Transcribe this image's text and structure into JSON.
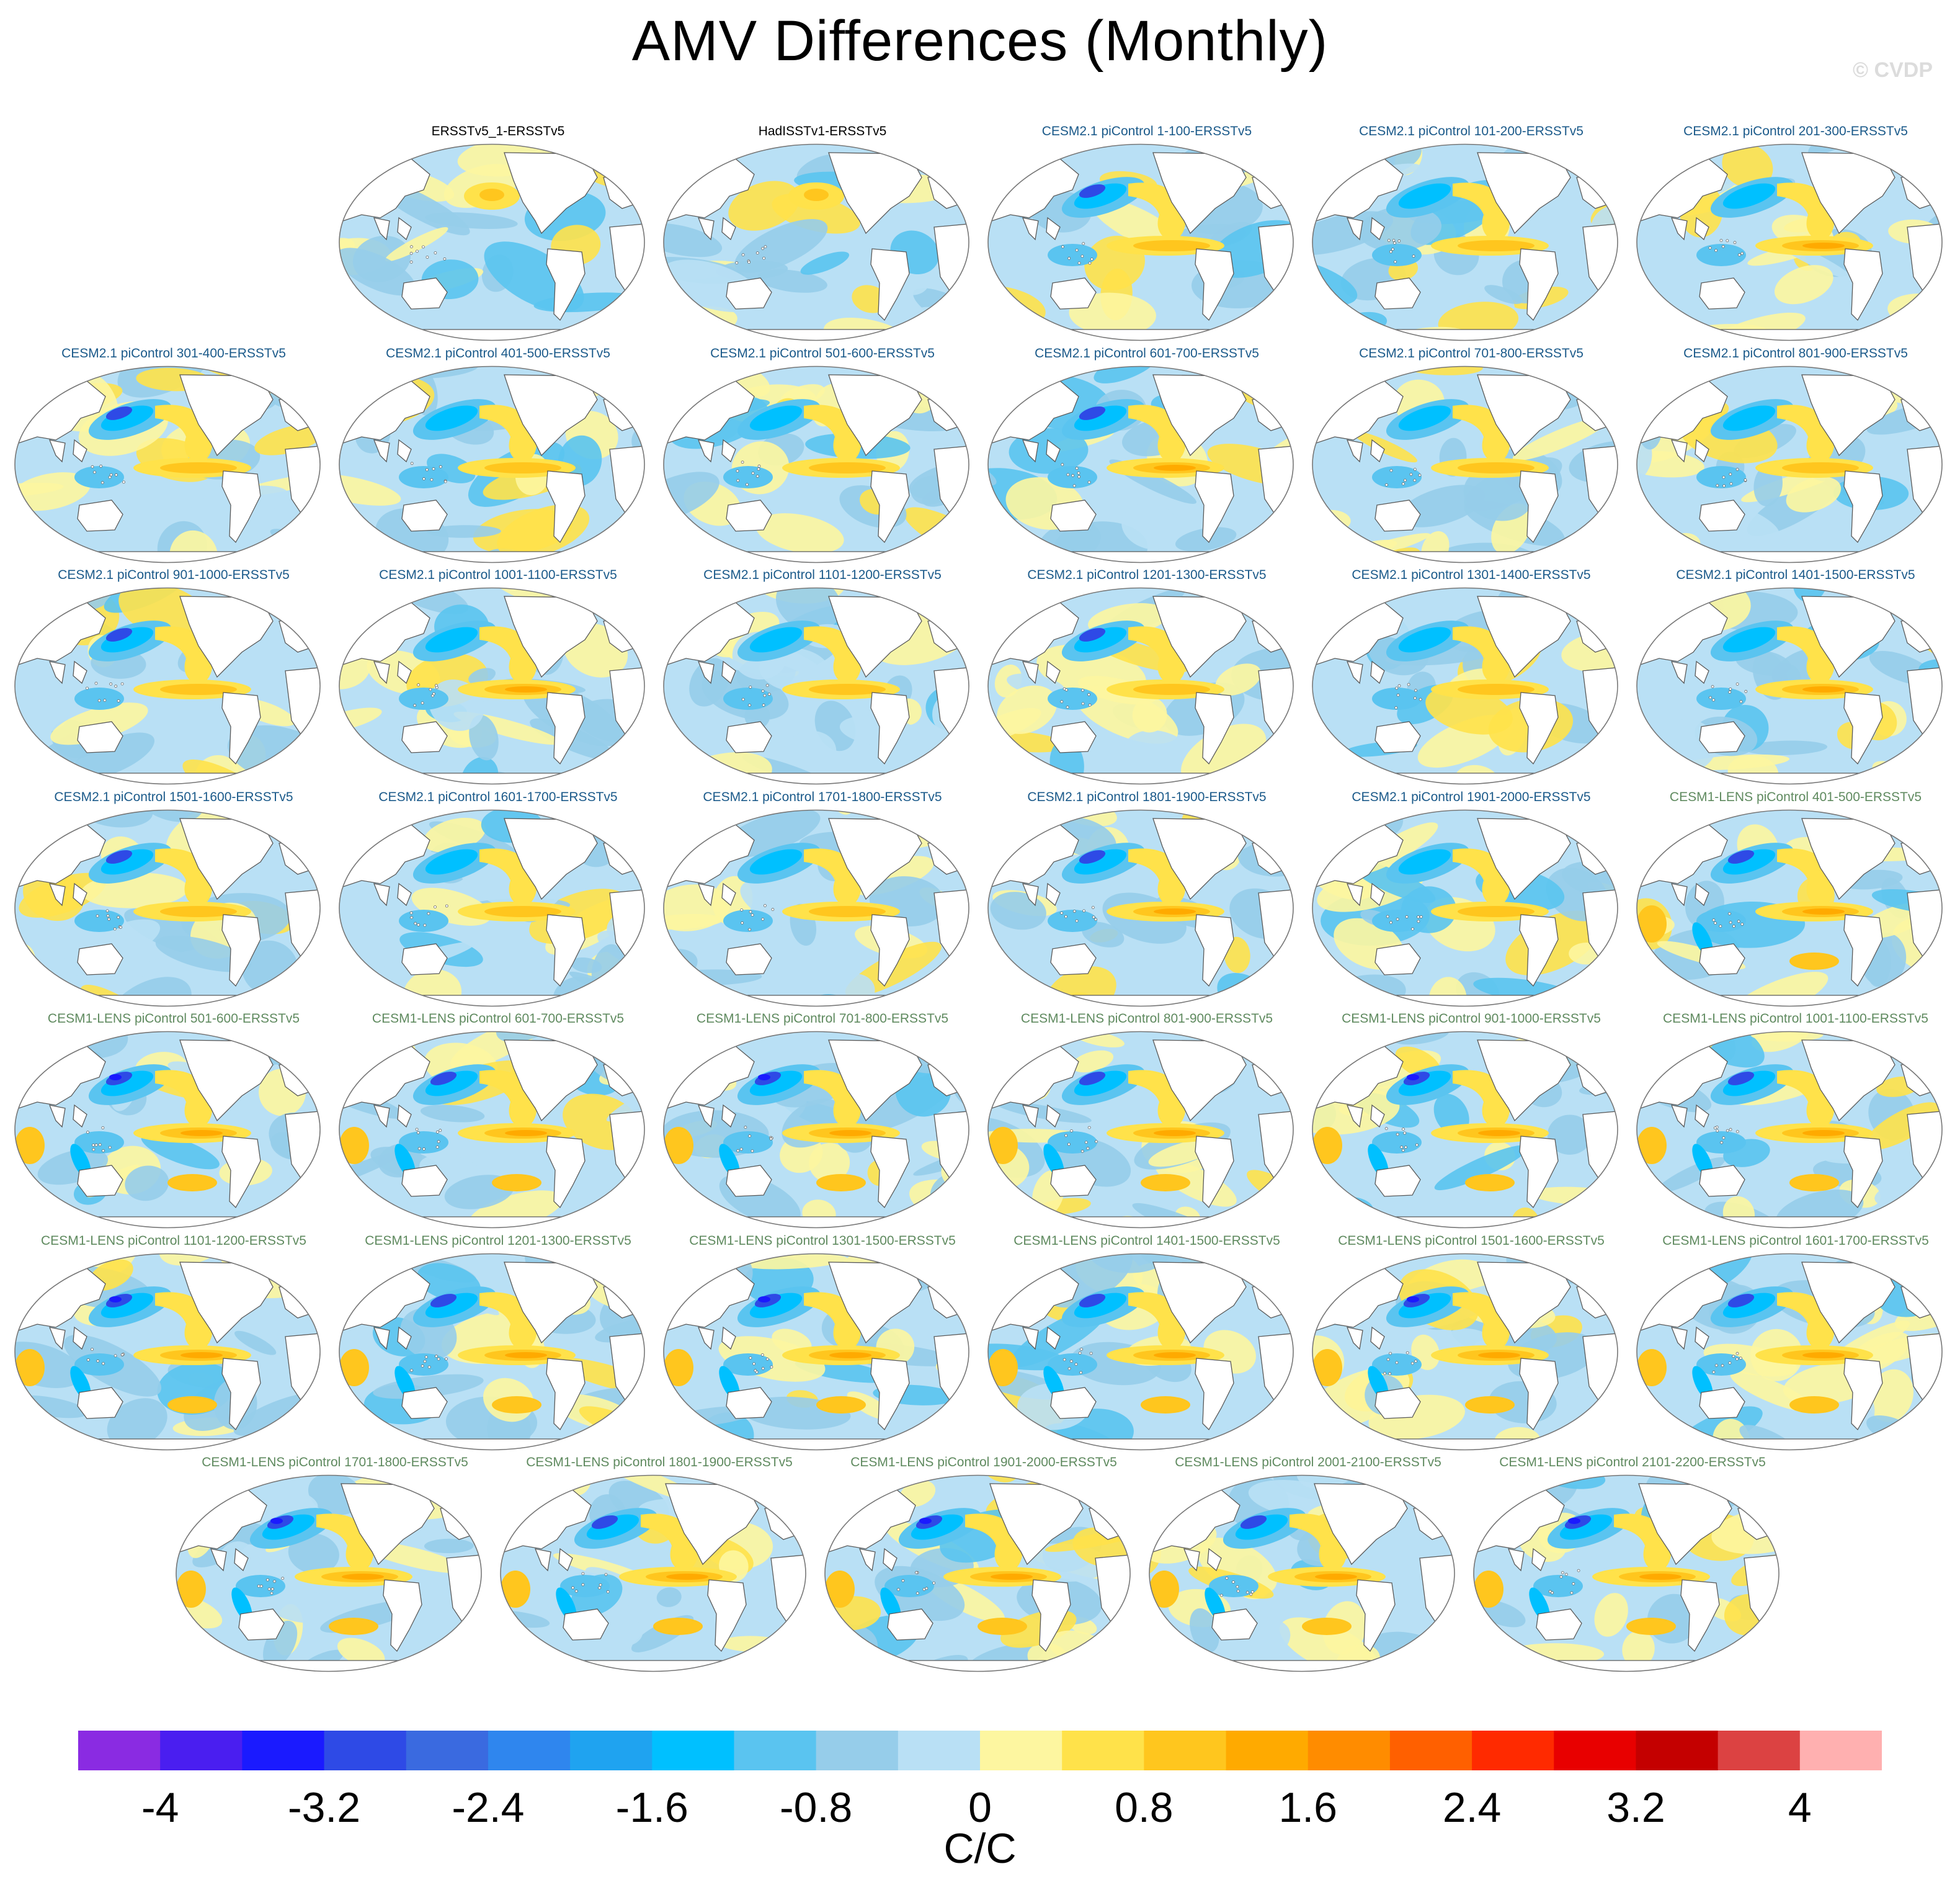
{
  "title": "AMV Differences (Monthly)",
  "copyright": "© CVDP",
  "colors": {
    "obs_title": "#000000",
    "cesm2_title": "#1b5a8a",
    "cesm1_title": "#5f8a5f",
    "land": "#ffffff",
    "coast": "#555555"
  },
  "panels": [
    {
      "label": "ERSSTv5_1-ERSSTv5",
      "group": "obs",
      "pattern": 1
    },
    {
      "label": "HadISSTv1-ERSSTv5",
      "group": "obs",
      "pattern": 2
    },
    {
      "label": "CESM2.1 piControl 1-100-ERSSTv5",
      "group": "cesm2",
      "pattern": 3
    },
    {
      "label": "CESM2.1 piControl 101-200-ERSSTv5",
      "group": "cesm2",
      "pattern": 4
    },
    {
      "label": "CESM2.1 piControl 201-300-ERSSTv5",
      "group": "cesm2",
      "pattern": 5
    },
    {
      "label": "CESM2.1 piControl 301-400-ERSSTv5",
      "group": "cesm2",
      "pattern": 6
    },
    {
      "label": "CESM2.1 piControl 401-500-ERSSTv5",
      "group": "cesm2",
      "pattern": 7
    },
    {
      "label": "CESM2.1 piControl 501-600-ERSSTv5",
      "group": "cesm2",
      "pattern": 8
    },
    {
      "label": "CESM2.1 piControl 601-700-ERSSTv5",
      "group": "cesm2",
      "pattern": 9
    },
    {
      "label": "CESM2.1 piControl 701-800-ERSSTv5",
      "group": "cesm2",
      "pattern": 10
    },
    {
      "label": "CESM2.1 piControl 801-900-ERSSTv5",
      "group": "cesm2",
      "pattern": 11
    },
    {
      "label": "CESM2.1 piControl 901-1000-ERSSTv5",
      "group": "cesm2",
      "pattern": 12
    },
    {
      "label": "CESM2.1 piControl 1001-1100-ERSSTv5",
      "group": "cesm2",
      "pattern": 13
    },
    {
      "label": "CESM2.1 piControl 1101-1200-ERSSTv5",
      "group": "cesm2",
      "pattern": 14
    },
    {
      "label": "CESM2.1 piControl 1201-1300-ERSSTv5",
      "group": "cesm2",
      "pattern": 15
    },
    {
      "label": "CESM2.1 piControl 1301-1400-ERSSTv5",
      "group": "cesm2",
      "pattern": 16
    },
    {
      "label": "CESM2.1 piControl 1401-1500-ERSSTv5",
      "group": "cesm2",
      "pattern": 17
    },
    {
      "label": "CESM2.1 piControl 1501-1600-ERSSTv5",
      "group": "cesm2",
      "pattern": 18
    },
    {
      "label": "CESM2.1 piControl 1601-1700-ERSSTv5",
      "group": "cesm2",
      "pattern": 19
    },
    {
      "label": "CESM2.1 piControl 1701-1800-ERSSTv5",
      "group": "cesm2",
      "pattern": 20
    },
    {
      "label": "CESM2.1 piControl 1801-1900-ERSSTv5",
      "group": "cesm2",
      "pattern": 21
    },
    {
      "label": "CESM2.1 piControl 1901-2000-ERSSTv5",
      "group": "cesm2",
      "pattern": 22
    },
    {
      "label": "CESM1-LENS piControl 401-500-ERSSTv5",
      "group": "cesm1",
      "pattern": 23
    },
    {
      "label": "CESM1-LENS piControl 501-600-ERSSTv5",
      "group": "cesm1",
      "pattern": 24
    },
    {
      "label": "CESM1-LENS piControl 601-700-ERSSTv5",
      "group": "cesm1",
      "pattern": 25
    },
    {
      "label": "CESM1-LENS piControl 701-800-ERSSTv5",
      "group": "cesm1",
      "pattern": 26
    },
    {
      "label": "CESM1-LENS piControl 801-900-ERSSTv5",
      "group": "cesm1",
      "pattern": 27
    },
    {
      "label": "CESM1-LENS piControl 901-1000-ERSSTv5",
      "group": "cesm1",
      "pattern": 28
    },
    {
      "label": "CESM1-LENS piControl 1001-1100-ERSSTv5",
      "group": "cesm1",
      "pattern": 29
    },
    {
      "label": "CESM1-LENS piControl 1101-1200-ERSSTv5",
      "group": "cesm1",
      "pattern": 30
    },
    {
      "label": "CESM1-LENS piControl 1201-1300-ERSSTv5",
      "group": "cesm1",
      "pattern": 31
    },
    {
      "label": "CESM1-LENS piControl 1301-1500-ERSSTv5",
      "group": "cesm1",
      "pattern": 32
    },
    {
      "label": "CESM1-LENS piControl 1401-1500-ERSSTv5",
      "group": "cesm1",
      "pattern": 33
    },
    {
      "label": "CESM1-LENS piControl 1501-1600-ERSSTv5",
      "group": "cesm1",
      "pattern": 34
    },
    {
      "label": "CESM1-LENS piControl 1601-1700-ERSSTv5",
      "group": "cesm1",
      "pattern": 35
    },
    {
      "label": "CESM1-LENS piControl 1701-1800-ERSSTv5",
      "group": "cesm1",
      "pattern": 36
    },
    {
      "label": "CESM1-LENS piControl 1801-1900-ERSSTv5",
      "group": "cesm1",
      "pattern": 37
    },
    {
      "label": "CESM1-LENS piControl 1901-2000-ERSSTv5",
      "group": "cesm1",
      "pattern": 38
    },
    {
      "label": "CESM1-LENS piControl 2001-2100-ERSSTv5",
      "group": "cesm1",
      "pattern": 39
    },
    {
      "label": "CESM1-LENS piControl 2101-2200-ERSSTv5",
      "group": "cesm1",
      "pattern": 40
    }
  ],
  "colorbar": {
    "colors": [
      "#8a2be2",
      "#4a1ef0",
      "#1a1aff",
      "#2e4ae6",
      "#3a6ae0",
      "#2f86ee",
      "#1fa3f0",
      "#00c0ff",
      "#5ac4f0",
      "#96cdea",
      "#b9e0f5",
      "#fdf6a0",
      "#ffe24a",
      "#ffc61e",
      "#ffaa00",
      "#ff8c00",
      "#ff6000",
      "#ff2a00",
      "#e80000",
      "#c40000",
      "#dc4242",
      "#ffb0b0"
    ],
    "tick_labels": [
      "-4",
      "-3.2",
      "-2.4",
      "-1.6",
      "-0.8",
      "0",
      "0.8",
      "1.6",
      "2.4",
      "3.2",
      "4"
    ],
    "units": "C/C"
  }
}
